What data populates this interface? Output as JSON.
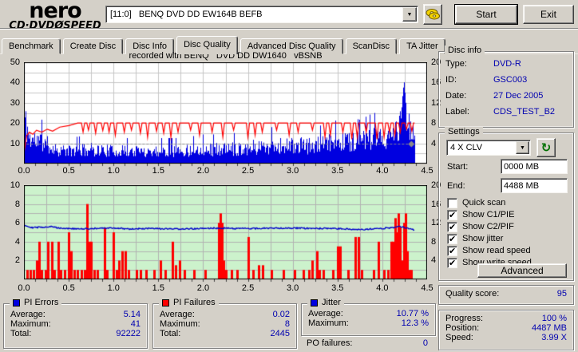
{
  "app": {
    "logo_line1": "nero",
    "logo_line2": "CD·DVDØSPEED",
    "drive_selector_value": "[11:0]   BENQ DVD DD EW164B BEFB",
    "start_button": "Start",
    "exit_button": "Exit"
  },
  "tabs": [
    {
      "label": "Benchmark",
      "active": false
    },
    {
      "label": "Create Disc",
      "active": false
    },
    {
      "label": "Disc Info",
      "active": false
    },
    {
      "label": "Disc Quality",
      "active": true
    },
    {
      "label": "Advanced Disc Quality",
      "active": false
    },
    {
      "label": "ScanDisc",
      "active": false
    },
    {
      "label": "TA Jitter",
      "active": false
    }
  ],
  "chart_header": "recorded with BENQ   DVD DD DW1640   vBSNB",
  "stats": {
    "pi_errors": {
      "title": "PI Errors",
      "avg_label": "Average:",
      "avg": "5.14",
      "max_label": "Maximum:",
      "max": "41",
      "total_label": "Total:",
      "total": "92222"
    },
    "pi_failures": {
      "title": "PI Failures",
      "avg_label": "Average:",
      "avg": "0.02",
      "max_label": "Maximum:",
      "max": "8",
      "total_label": "Total:",
      "total": "2445"
    },
    "jitter": {
      "title": "Jitter",
      "avg_label": "Average:",
      "avg": "10.77 %",
      "max_label": "Maximum:",
      "max": "12.3 %"
    },
    "po_failures_label": "PO failures:",
    "po_failures": "0"
  },
  "disc_info": {
    "title": "Disc info",
    "type_label": "Type:",
    "type": "DVD-R",
    "id_label": "ID:",
    "id": "GSC003",
    "date_label": "Date:",
    "date": "27 Dec 2005",
    "label_label": "Label:",
    "label": "CDS_TEST_B2"
  },
  "settings": {
    "title": "Settings",
    "speed_select": "4 X CLV",
    "start_label": "Start:",
    "start_value": "0000 MB",
    "end_label": "End:",
    "end_value": "4488 MB",
    "checkboxes": [
      {
        "label": "Quick scan",
        "checked": false
      },
      {
        "label": "Show C1/PIE",
        "checked": true
      },
      {
        "label": "Show C2/PIF",
        "checked": true
      },
      {
        "label": "Show jitter",
        "checked": true
      },
      {
        "label": "Show read speed",
        "checked": true
      },
      {
        "label": "Show write speed",
        "checked": true
      }
    ],
    "advanced_button": "Advanced"
  },
  "quality": {
    "label": "Quality score:",
    "value": "95"
  },
  "progress": {
    "progress_label": "Progress:",
    "progress": "100 %",
    "position_label": "Position:",
    "position": "4487 MB",
    "speed_label": "Speed:",
    "speed": "3.99 X"
  },
  "chart_data": [
    {
      "type": "bar",
      "name": "pi-errors-scan",
      "x_range": [
        0,
        4.5
      ],
      "x_ticks": [
        "0.0",
        "0.5",
        "1.0",
        "1.5",
        "2.0",
        "2.5",
        "3.0",
        "3.5",
        "4.0",
        "4.5"
      ],
      "left_axis": {
        "range": [
          0,
          50
        ],
        "ticks": [
          50,
          40,
          30,
          20,
          10
        ],
        "grid_step": 5
      },
      "right_axis": {
        "range": [
          0,
          20
        ],
        "ticks": [
          20,
          16,
          12,
          8,
          4
        ]
      },
      "plot_bg": "#ffffff",
      "grid_color": "#c6c6c6",
      "grid_x_step": 0.25,
      "data_end": 4.36,
      "seed": 11,
      "series": [
        {
          "name": "PI Errors",
          "type": "bar_envelope",
          "color": "#0000e0",
          "axis": "left",
          "max": 41,
          "average": 5.14,
          "total": 92222,
          "envelope": [
            [
              0,
              25
            ],
            [
              0.03,
              20
            ],
            [
              0.06,
              14
            ],
            [
              0.12,
              13
            ],
            [
              0.2,
              12
            ],
            [
              0.28,
              10
            ],
            [
              0.35,
              8
            ],
            [
              0.5,
              7
            ],
            [
              0.75,
              8
            ],
            [
              1,
              7
            ],
            [
              1.25,
              7
            ],
            [
              1.5,
              7
            ],
            [
              1.75,
              7
            ],
            [
              2,
              8
            ],
            [
              2.25,
              8
            ],
            [
              2.5,
              9
            ],
            [
              2.75,
              10
            ],
            [
              3,
              10
            ],
            [
              3.25,
              10
            ],
            [
              3.5,
              12
            ],
            [
              3.6,
              13
            ],
            [
              3.75,
              12
            ],
            [
              3.9,
              14
            ],
            [
              4,
              13
            ],
            [
              4.1,
              15
            ],
            [
              4.15,
              18
            ],
            [
              4.2,
              22
            ],
            [
              4.24,
              41
            ],
            [
              4.27,
              24
            ],
            [
              4.3,
              18
            ],
            [
              4.36,
              16
            ]
          ]
        },
        {
          "name": "Write speed",
          "type": "line_dip",
          "color": "#ff0000",
          "axis": "right",
          "baseline": 8,
          "flat_from": 0.6,
          "ramp": [
            [
              0,
              2
            ],
            [
              0.03,
              5.5
            ],
            [
              0.06,
              6.2
            ],
            [
              0.1,
              5.8
            ],
            [
              0.14,
              6.6
            ],
            [
              0.2,
              6.2
            ],
            [
              0.26,
              6.8
            ],
            [
              0.32,
              6.4
            ],
            [
              0.4,
              7.2
            ],
            [
              0.5,
              7.5
            ],
            [
              0.6,
              8
            ]
          ],
          "dips": [
            [
              0.66,
              6.2
            ],
            [
              0.72,
              6.6
            ],
            [
              0.8,
              6
            ],
            [
              0.88,
              6.5
            ],
            [
              0.95,
              6.2
            ],
            [
              1.02,
              5.6
            ],
            [
              1.12,
              6.2
            ],
            [
              1.2,
              6.6
            ],
            [
              1.3,
              6
            ],
            [
              1.38,
              5.2
            ],
            [
              1.48,
              6.4
            ],
            [
              1.56,
              6
            ],
            [
              1.64,
              5.2
            ],
            [
              1.72,
              6.2
            ],
            [
              1.86,
              6.6
            ],
            [
              1.96,
              5.6
            ],
            [
              2.1,
              6.2
            ],
            [
              2.22,
              5.2
            ],
            [
              2.34,
              6.6
            ],
            [
              2.5,
              5.2
            ],
            [
              2.58,
              5.6
            ],
            [
              2.66,
              6.2
            ],
            [
              2.82,
              6.6
            ],
            [
              2.96,
              5.6
            ],
            [
              3.06,
              6.2
            ],
            [
              3.22,
              6.6
            ],
            [
              3.36,
              5.2
            ],
            [
              3.42,
              5.6
            ],
            [
              3.56,
              6.2
            ],
            [
              3.66,
              4.8
            ],
            [
              3.72,
              5.2
            ],
            [
              3.82,
              6.2
            ],
            [
              3.94,
              4.8
            ],
            [
              4.02,
              5.2
            ],
            [
              4.08,
              6.2
            ],
            [
              4.14,
              5.6
            ],
            [
              4.2,
              6.2
            ],
            [
              4.27,
              6.8
            ],
            [
              4.33,
              6.4
            ]
          ]
        },
        {
          "name": "Read speed",
          "type": "line_const",
          "color": "#8a8a8a",
          "axis": "right",
          "value": 4,
          "from": 0.03
        }
      ]
    },
    {
      "type": "bar",
      "name": "pi-failures-jitter-scan",
      "x_range": [
        0,
        4.5
      ],
      "x_ticks": [
        "0.0",
        "0.5",
        "1.0",
        "1.5",
        "2.0",
        "2.5",
        "3.0",
        "3.5",
        "4.0",
        "4.5"
      ],
      "left_axis": {
        "range": [
          0,
          10
        ],
        "ticks": [
          10,
          8,
          6,
          4,
          2
        ],
        "grid_step": 1
      },
      "right_axis": {
        "range": [
          0,
          20
        ],
        "ticks": [
          20,
          16,
          12,
          8,
          4
        ]
      },
      "plot_bg": "#ccf2cc",
      "grid_color": "#b2b2b2",
      "grid_x_step": 0.25,
      "data_end": 4.36,
      "seed": 29,
      "series": [
        {
          "name": "PI Failures",
          "type": "bar_list",
          "color": "#ff0000",
          "axis": "left",
          "max": 8,
          "average": 0.02,
          "total": 2445,
          "bars": [
            [
              0.04,
              1
            ],
            [
              0.07,
              1
            ],
            [
              0.11,
              1
            ],
            [
              0.14,
              2
            ],
            [
              0.17,
              4
            ],
            [
              0.2,
              1
            ],
            [
              0.24,
              1
            ],
            [
              0.27,
              4
            ],
            [
              0.31,
              4
            ],
            [
              0.34,
              1
            ],
            [
              0.38,
              4
            ],
            [
              0.41,
              1
            ],
            [
              0.45,
              1
            ],
            [
              0.5,
              5
            ],
            [
              0.53,
              3
            ],
            [
              0.56,
              1
            ],
            [
              0.6,
              1
            ],
            [
              0.64,
              1
            ],
            [
              0.68,
              1
            ],
            [
              0.7,
              8
            ],
            [
              0.72,
              1
            ],
            [
              0.73,
              4
            ],
            [
              0.75,
              4
            ],
            [
              0.78,
              1
            ],
            [
              0.82,
              1
            ],
            [
              0.9,
              5.5
            ],
            [
              0.93,
              1
            ],
            [
              1,
              5
            ],
            [
              1.03,
              1
            ],
            [
              1.06,
              2
            ],
            [
              1.1,
              3
            ],
            [
              1.13,
              3
            ],
            [
              1.17,
              1
            ],
            [
              1.26,
              1
            ],
            [
              1.3,
              1
            ],
            [
              1.36,
              1
            ],
            [
              1.45,
              1
            ],
            [
              1.52,
              2
            ],
            [
              1.58,
              1
            ],
            [
              1.66,
              4
            ],
            [
              1.69,
              1.5
            ],
            [
              1.74,
              2
            ],
            [
              1.79,
              1
            ],
            [
              1.9,
              1
            ],
            [
              2.02,
              1
            ],
            [
              2.17,
              6
            ],
            [
              2.19,
              7
            ],
            [
              2.21,
              6
            ],
            [
              2.23,
              2
            ],
            [
              2.25,
              1
            ],
            [
              2.32,
              1
            ],
            [
              2.38,
              1
            ],
            [
              2.5,
              4.5
            ],
            [
              2.56,
              1
            ],
            [
              2.62,
              1.5
            ],
            [
              2.66,
              1.5
            ],
            [
              2.76,
              1
            ],
            [
              2.9,
              1
            ],
            [
              3.02,
              1
            ],
            [
              3.12,
              1
            ],
            [
              3.18,
              1
            ],
            [
              3.22,
              2
            ],
            [
              3.27,
              3
            ],
            [
              3.3,
              1
            ],
            [
              3.34,
              1
            ],
            [
              3.45,
              1
            ],
            [
              3.5,
              3.5
            ],
            [
              3.53,
              3.5
            ],
            [
              3.62,
              1
            ],
            [
              3.7,
              4.5
            ],
            [
              3.73,
              4.5
            ],
            [
              3.77,
              1
            ],
            [
              3.9,
              1
            ],
            [
              3.96,
              4
            ],
            [
              4.02,
              1
            ],
            [
              4.06,
              1
            ],
            [
              4.1,
              4
            ],
            [
              4.12,
              4
            ],
            [
              4.14,
              6.5
            ],
            [
              4.16,
              5
            ],
            [
              4.18,
              7
            ],
            [
              4.2,
              5.5
            ],
            [
              4.22,
              2
            ],
            [
              4.24,
              6
            ],
            [
              4.26,
              7
            ],
            [
              4.28,
              3
            ],
            [
              4.3,
              1
            ],
            [
              4.32,
              1
            ]
          ]
        },
        {
          "name": "Jitter",
          "type": "line_envelope",
          "color": "#0000cc",
          "axis": "right",
          "noise": 0.14,
          "average_pct": 10.77,
          "max_pct": 12.3,
          "envelope": [
            [
              0,
              11.6
            ],
            [
              0.05,
              11.2
            ],
            [
              0.1,
              11
            ],
            [
              0.2,
              11.1
            ],
            [
              0.3,
              11.2
            ],
            [
              0.4,
              10.9
            ],
            [
              0.5,
              10.8
            ],
            [
              0.6,
              10.7
            ],
            [
              0.8,
              10.8
            ],
            [
              1,
              10.9
            ],
            [
              1.2,
              10.7
            ],
            [
              1.4,
              10.8
            ],
            [
              1.6,
              10.7
            ],
            [
              1.8,
              10.7
            ],
            [
              2,
              10.8
            ],
            [
              2.2,
              10.9
            ],
            [
              2.4,
              10.8
            ],
            [
              2.6,
              10.8
            ],
            [
              2.8,
              10.9
            ],
            [
              3,
              10.9
            ],
            [
              3.2,
              10.8
            ],
            [
              3.4,
              10.8
            ],
            [
              3.6,
              10.7
            ],
            [
              3.8,
              10.6
            ],
            [
              4,
              10.8
            ],
            [
              4.1,
              11
            ],
            [
              4.2,
              11.2
            ],
            [
              4.3,
              10.8
            ],
            [
              4.36,
              10.5
            ]
          ]
        }
      ]
    }
  ]
}
